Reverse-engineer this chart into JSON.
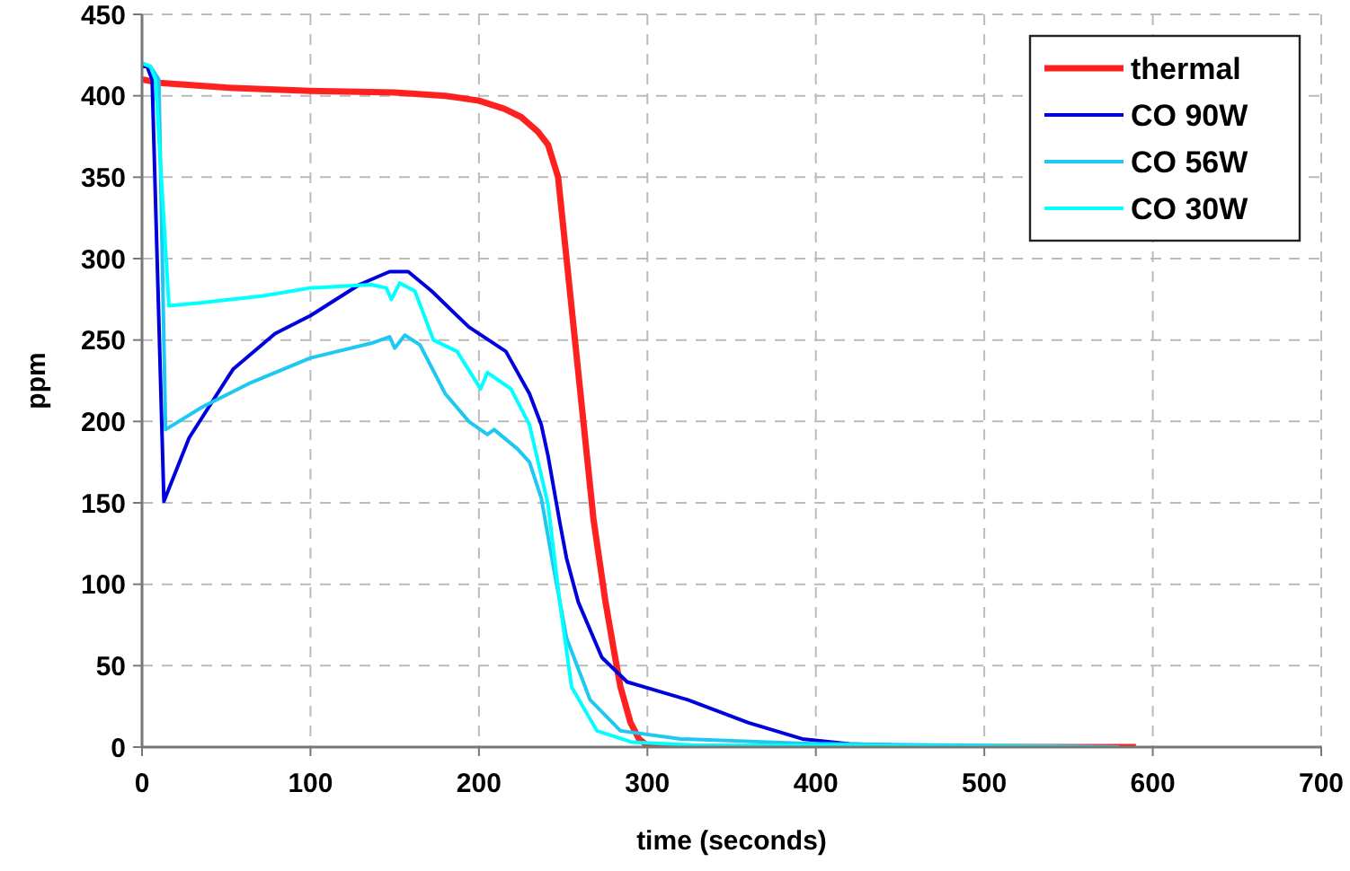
{
  "chart_data": {
    "type": "line",
    "xlabel": "time (seconds)",
    "ylabel": "ppm",
    "xlim": [
      0,
      700
    ],
    "xticks": [
      0,
      100,
      200,
      300,
      400,
      500,
      600,
      700
    ],
    "ylim": [
      0,
      450
    ],
    "yticks": [
      0,
      50,
      100,
      150,
      200,
      250,
      300,
      350,
      400,
      450
    ],
    "grid": true,
    "legend": "top right",
    "line_style": "solid",
    "series": [
      {
        "name": "thermal",
        "color": "#ff2020",
        "x": [
          0,
          10,
          50,
          100,
          150,
          180,
          200,
          215,
          225,
          235,
          241,
          247,
          252,
          256,
          262,
          268,
          275,
          280,
          284,
          290,
          295,
          300,
          310,
          400,
          500,
          590
        ],
        "values": [
          410,
          408,
          405,
          403,
          402,
          400,
          397,
          392,
          387,
          378,
          370,
          350,
          300,
          260,
          200,
          140,
          90,
          60,
          37,
          15,
          5,
          1,
          0,
          0,
          0,
          0
        ]
      },
      {
        "name": "CO 90W",
        "color": "#0000dd",
        "x": [
          0,
          3,
          6,
          13,
          28,
          54,
          79,
          100,
          129,
          147,
          158,
          172,
          194,
          216,
          230,
          237,
          241,
          248,
          252,
          259,
          273,
          288,
          324,
          360,
          392,
          420,
          450
        ],
        "values": [
          418,
          418,
          410,
          151,
          190,
          232,
          254,
          265,
          284,
          292,
          292,
          280,
          258,
          243,
          217,
          198,
          179,
          138,
          116,
          89,
          55,
          40,
          29,
          15,
          5,
          2,
          1
        ]
      },
      {
        "name": "CO 56W",
        "color": "#1ec8f0",
        "x": [
          0,
          5,
          10,
          14,
          36,
          65,
          100,
          136,
          147,
          150,
          156,
          165,
          180,
          194,
          205,
          209,
          223,
          230,
          237,
          244,
          252,
          266,
          284,
          320,
          400,
          500,
          580
        ],
        "values": [
          420,
          418,
          410,
          195,
          209,
          224,
          239,
          248,
          252,
          245,
          253,
          247,
          217,
          200,
          192,
          195,
          183,
          175,
          153,
          112,
          67,
          29,
          10,
          5,
          2,
          1,
          0
        ]
      },
      {
        "name": "CO 30W",
        "color": "#00ffff",
        "x": [
          0,
          5,
          8,
          16,
          36,
          71,
          100,
          136,
          145,
          148,
          153,
          162,
          173,
          187,
          201,
          205,
          219,
          230,
          241,
          248,
          255,
          270,
          291,
          330,
          400,
          580
        ],
        "values": [
          420,
          418,
          410,
          271,
          273,
          277,
          282,
          284,
          282,
          275,
          285,
          280,
          250,
          243,
          220,
          230,
          220,
          198,
          149,
          89,
          37,
          10,
          3,
          1,
          1,
          0
        ]
      }
    ]
  }
}
